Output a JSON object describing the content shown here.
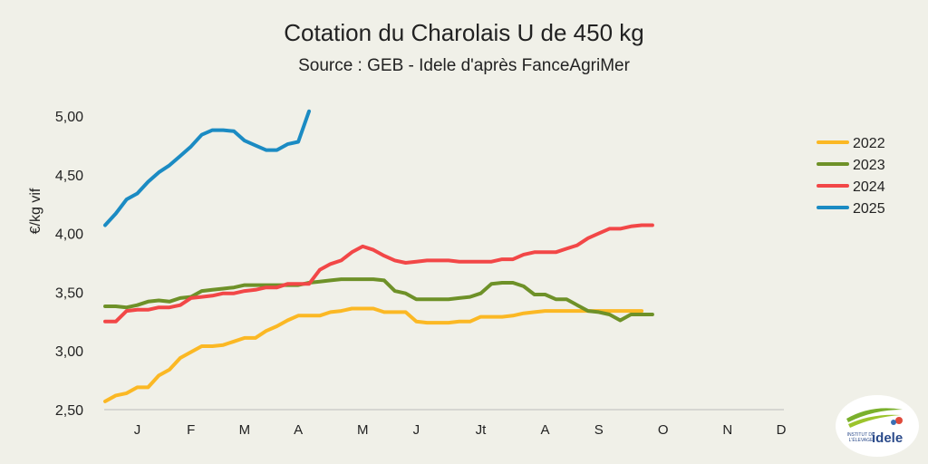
{
  "chart_data": {
    "type": "line",
    "title": "Cotation du Charolais U de 450 kg",
    "subtitle": "Source : GEB - Idele d'après FanceAgriMer",
    "ylabel": "€/kg vif",
    "xlabel": "",
    "ylim": [
      2.5,
      5.0
    ],
    "yticks": [
      "2,50",
      "3,00",
      "3,50",
      "4,00",
      "4,50",
      "5,00"
    ],
    "ytick_values": [
      2.5,
      3.0,
      3.5,
      4.0,
      4.5,
      5.0
    ],
    "xtick_labels": [
      "J",
      "F",
      "M",
      "A",
      "M",
      "J",
      "Jt",
      "A",
      "S",
      "O",
      "N",
      "D"
    ],
    "xtick_weeks": [
      3,
      8,
      13,
      18,
      24,
      29,
      35,
      41,
      46,
      52,
      58,
      63
    ],
    "x_weeks_total": 63,
    "legend_position": "right",
    "series": [
      {
        "name": "2022",
        "color": "#fbb824",
        "values": [
          2.57,
          2.62,
          2.64,
          2.69,
          2.69,
          2.79,
          2.84,
          2.94,
          2.99,
          3.04,
          3.04,
          3.05,
          3.08,
          3.11,
          3.11,
          3.17,
          3.21,
          3.26,
          3.3,
          3.3,
          3.3,
          3.33,
          3.34,
          3.36,
          3.36,
          3.36,
          3.33,
          3.33,
          3.33,
          3.25,
          3.24,
          3.24,
          3.24,
          3.25,
          3.25,
          3.29,
          3.29,
          3.29,
          3.3,
          3.32,
          3.33,
          3.34,
          3.34,
          3.34,
          3.34,
          3.34,
          3.34,
          3.34,
          3.34,
          3.34,
          3.34
        ]
      },
      {
        "name": "2023",
        "color": "#6e9128",
        "values": [
          3.38,
          3.38,
          3.37,
          3.39,
          3.42,
          3.43,
          3.42,
          3.45,
          3.46,
          3.51,
          3.52,
          3.53,
          3.54,
          3.56,
          3.56,
          3.56,
          3.56,
          3.56,
          3.56,
          3.58,
          3.59,
          3.6,
          3.61,
          3.61,
          3.61,
          3.61,
          3.6,
          3.51,
          3.49,
          3.44,
          3.44,
          3.44,
          3.44,
          3.45,
          3.46,
          3.49,
          3.57,
          3.58,
          3.58,
          3.55,
          3.48,
          3.48,
          3.44,
          3.44,
          3.39,
          3.34,
          3.33,
          3.31,
          3.26,
          3.31,
          3.31,
          3.31
        ]
      },
      {
        "name": "2024",
        "color": "#f24747",
        "values": [
          3.25,
          3.25,
          3.34,
          3.35,
          3.35,
          3.37,
          3.37,
          3.39,
          3.45,
          3.46,
          3.47,
          3.49,
          3.49,
          3.51,
          3.52,
          3.54,
          3.54,
          3.57,
          3.57,
          3.57,
          3.69,
          3.74,
          3.77,
          3.84,
          3.89,
          3.86,
          3.81,
          3.77,
          3.75,
          3.76,
          3.77,
          3.77,
          3.77,
          3.76,
          3.76,
          3.76,
          3.76,
          3.78,
          3.78,
          3.82,
          3.84,
          3.84,
          3.84,
          3.87,
          3.9,
          3.96,
          4.0,
          4.04,
          4.04,
          4.06,
          4.07,
          4.07
        ]
      },
      {
        "name": "2025",
        "color": "#1b8bc3",
        "values": [
          4.07,
          4.17,
          4.29,
          4.34,
          4.44,
          4.52,
          4.58,
          4.66,
          4.74,
          4.84,
          4.88,
          4.88,
          4.87,
          4.79,
          4.75,
          4.71,
          4.71,
          4.76,
          4.78,
          5.04
        ]
      }
    ]
  },
  "logo": {
    "line1": "INSTITUT DE",
    "line2": "L'ÉLEVAGE",
    "brand": "idele"
  }
}
